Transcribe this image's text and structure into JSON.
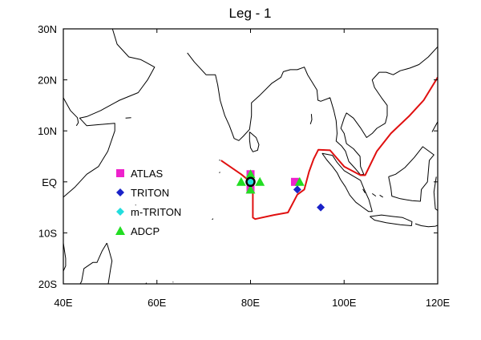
{
  "title": "Leg - 1",
  "x_ticks": [
    {
      "label": "40E",
      "lon": 40
    },
    {
      "label": "60E",
      "lon": 60
    },
    {
      "label": "80E",
      "lon": 80
    },
    {
      "label": "100E",
      "lon": 100
    },
    {
      "label": "120E",
      "lon": 120
    }
  ],
  "y_ticks": [
    {
      "label": "30N",
      "lat": 30
    },
    {
      "label": "20N",
      "lat": 20
    },
    {
      "label": "10N",
      "lat": 10
    },
    {
      "label": "EQ",
      "lat": 0
    },
    {
      "label": "10S",
      "lat": -10
    },
    {
      "label": "20S",
      "lat": -20
    }
  ],
  "extent": {
    "lon": [
      40,
      120
    ],
    "lat": [
      -20,
      30
    ]
  },
  "colors": {
    "route": "#e01010",
    "atlas": "#ee22cc",
    "triton": "#1a22c8",
    "m_triton": "#22dddd",
    "adcp": "#22dd22"
  },
  "legend": [
    {
      "key": "atlas",
      "label": "ATLAS",
      "marker": "square"
    },
    {
      "key": "triton",
      "label": "TRITON",
      "marker": "diamond"
    },
    {
      "key": "m_triton",
      "label": "m-TRITON",
      "marker": "diamond"
    },
    {
      "key": "adcp",
      "label": "ADCP",
      "marker": "triangle"
    }
  ],
  "route": [
    [
      73.7,
      4.2
    ],
    [
      78.0,
      1.5
    ],
    [
      80.0,
      0.0
    ],
    [
      80.5,
      -1.5
    ],
    [
      80.5,
      -7.0
    ],
    [
      81.0,
      -7.3
    ],
    [
      85.0,
      -6.5
    ],
    [
      88.0,
      -6.0
    ],
    [
      90.0,
      -2.5
    ],
    [
      91.5,
      -1.5
    ],
    [
      92.5,
      2.0
    ],
    [
      93.5,
      4.5
    ],
    [
      94.5,
      6.3
    ],
    [
      97.0,
      6.2
    ],
    [
      100.0,
      3.0
    ],
    [
      103.5,
      1.3
    ],
    [
      104.5,
      1.3
    ],
    [
      107.0,
      6.0
    ],
    [
      110.0,
      9.5
    ],
    [
      114.0,
      13.0
    ],
    [
      117.0,
      16.0
    ],
    [
      120.0,
      20.5
    ]
  ],
  "stations": [
    {
      "type": "atlas",
      "lon": 80,
      "lat": 1.5
    },
    {
      "type": "atlas",
      "lon": 80,
      "lat": -1.5
    },
    {
      "type": "atlas",
      "lon": 89.5,
      "lat": 0
    },
    {
      "type": "adcp",
      "lon": 78,
      "lat": 0
    },
    {
      "type": "adcp",
      "lon": 82,
      "lat": 0
    },
    {
      "type": "adcp",
      "lon": 80,
      "lat": 1.5
    },
    {
      "type": "adcp",
      "lon": 80,
      "lat": -1.5
    },
    {
      "type": "adcp",
      "lon": 90.5,
      "lat": 0
    },
    {
      "type": "m_triton",
      "lon": 80,
      "lat": 0
    },
    {
      "type": "triton",
      "lon": 90,
      "lat": -1.5
    },
    {
      "type": "triton",
      "lon": 95,
      "lat": -5
    }
  ],
  "mooring_circle": {
    "lon": 80,
    "lat": 0
  },
  "coastlines": [
    [
      [
        50.5,
        30
      ],
      [
        51.5,
        27
      ],
      [
        54,
        24.5
      ],
      [
        56.5,
        24
      ],
      [
        57.5,
        23.5
      ],
      [
        59.5,
        22.5
      ],
      [
        58,
        20
      ],
      [
        56,
        17.5
      ],
      [
        52,
        16
      ],
      [
        48,
        14
      ],
      [
        45,
        12.8
      ],
      [
        43.5,
        12.5
      ],
      [
        45,
        11
      ],
      [
        51,
        11.5
      ],
      [
        51,
        10
      ],
      [
        49.5,
        6
      ],
      [
        47.5,
        3
      ],
      [
        45,
        1.5
      ],
      [
        42.5,
        -1
      ],
      [
        40,
        -3
      ]
    ],
    [
      [
        40,
        16.5
      ],
      [
        41.5,
        14
      ],
      [
        43,
        12.6
      ],
      [
        43.2,
        11.6
      ],
      [
        42.8,
        11
      ]
    ],
    [
      [
        40,
        -12
      ],
      [
        40.5,
        -15
      ],
      [
        40.5,
        -16.5
      ],
      [
        40,
        -17.5
      ]
    ],
    [
      [
        66.5,
        25.3
      ],
      [
        68,
        23.5
      ],
      [
        69,
        22.5
      ],
      [
        70.5,
        21
      ],
      [
        72.5,
        21
      ],
      [
        73,
        19
      ],
      [
        73.5,
        16
      ],
      [
        74.5,
        13
      ],
      [
        75.5,
        11
      ],
      [
        76.5,
        8.5
      ],
      [
        77.5,
        8.1
      ],
      [
        78.5,
        9
      ],
      [
        79.8,
        10.3
      ],
      [
        80.2,
        13
      ],
      [
        80.2,
        15.5
      ],
      [
        82,
        17
      ],
      [
        84.5,
        19.3
      ],
      [
        86.5,
        20.5
      ],
      [
        87,
        21.6
      ],
      [
        88.5,
        22
      ],
      [
        90,
        22
      ],
      [
        91.5,
        22.5
      ],
      [
        92.2,
        21
      ],
      [
        93,
        19.8
      ],
      [
        94.2,
        18
      ],
      [
        94.4,
        16
      ],
      [
        95,
        15.8
      ],
      [
        97,
        16.5
      ],
      [
        97.8,
        14
      ],
      [
        98.3,
        12
      ],
      [
        98.5,
        9.5
      ],
      [
        98.3,
        8
      ],
      [
        99.5,
        7
      ],
      [
        100.3,
        6
      ],
      [
        101,
        4
      ],
      [
        102.5,
        2.5
      ],
      [
        103.5,
        1.4
      ],
      [
        104.2,
        1.5
      ],
      [
        103.5,
        3
      ],
      [
        103.4,
        5
      ],
      [
        102,
        6.5
      ],
      [
        100.5,
        7.5
      ],
      [
        100,
        9.5
      ],
      [
        99.3,
        10.5
      ],
      [
        100,
        12.5
      ],
      [
        100.5,
        13.5
      ],
      [
        102,
        12.5
      ],
      [
        103.5,
        10.6
      ],
      [
        104.8,
        8.7
      ],
      [
        106,
        9.5
      ],
      [
        107,
        10.5
      ],
      [
        108.8,
        11.5
      ],
      [
        109.2,
        13
      ],
      [
        109.2,
        15
      ],
      [
        108,
        16.5
      ],
      [
        106.5,
        18.5
      ],
      [
        106,
        20
      ],
      [
        107.5,
        21.5
      ],
      [
        109,
        21.5
      ],
      [
        110.5,
        21
      ],
      [
        112,
        21.8
      ],
      [
        114,
        22.3
      ],
      [
        116,
        23
      ],
      [
        118,
        24.5
      ],
      [
        120,
        26.5
      ]
    ],
    [
      [
        79.8,
        9.8
      ],
      [
        81.2,
        8.7
      ],
      [
        81.8,
        7.3
      ],
      [
        81.5,
        6.2
      ],
      [
        80.5,
        5.9
      ],
      [
        80,
        6.7
      ],
      [
        79.8,
        8.2
      ],
      [
        79.8,
        9.8
      ]
    ],
    [
      [
        93,
        13.3
      ],
      [
        93.1,
        12.2
      ],
      [
        92.8,
        11.3
      ]
    ],
    [
      [
        95.3,
        5.6
      ],
      [
        97.5,
        5.2
      ],
      [
        98.5,
        3.8
      ],
      [
        100,
        2.2
      ],
      [
        101.3,
        1.5
      ],
      [
        103.5,
        0.3
      ],
      [
        104.3,
        -1.5
      ],
      [
        105.3,
        -3.5
      ],
      [
        106,
        -5.8
      ],
      [
        105.2,
        -5.8
      ],
      [
        104,
        -5
      ],
      [
        102.5,
        -4
      ],
      [
        101.2,
        -2.6
      ],
      [
        100.3,
        -1
      ],
      [
        99.2,
        0.5
      ],
      [
        98.5,
        1.8
      ],
      [
        97.5,
        3
      ],
      [
        96.3,
        4.3
      ],
      [
        95.3,
        5.6
      ]
    ],
    [
      [
        105.5,
        -6.8
      ],
      [
        108,
        -6.5
      ],
      [
        110.5,
        -6.8
      ],
      [
        112.5,
        -7
      ],
      [
        114.5,
        -7.8
      ],
      [
        114.4,
        -8.6
      ],
      [
        112,
        -8.4
      ],
      [
        109,
        -8
      ],
      [
        106.5,
        -7.5
      ],
      [
        105.5,
        -6.8
      ]
    ],
    [
      [
        109.5,
        1
      ],
      [
        111,
        1.5
      ],
      [
        113,
        2.8
      ],
      [
        115,
        4.8
      ],
      [
        116.8,
        6.9
      ],
      [
        119.2,
        5.3
      ],
      [
        118.2,
        4.2
      ],
      [
        118,
        2
      ],
      [
        117.8,
        0
      ],
      [
        116.5,
        -1.5
      ],
      [
        116.3,
        -3.8
      ],
      [
        114.5,
        -3.7
      ],
      [
        112,
        -3.3
      ],
      [
        110.2,
        -2.8
      ],
      [
        110,
        -1.2
      ],
      [
        109.5,
        1
      ]
    ],
    [
      [
        119.7,
        1
      ],
      [
        119.2,
        -2
      ],
      [
        119.5,
        -5.3
      ],
      [
        120,
        -5.6
      ]
    ],
    [
      [
        115.2,
        -8.2
      ],
      [
        116.5,
        -8.6
      ],
      [
        118,
        -8.8
      ],
      [
        119.5,
        -8.7
      ],
      [
        120,
        -8.5
      ]
    ],
    [
      [
        118.8,
        9.8
      ],
      [
        119.4,
        10.8
      ],
      [
        120,
        11.8
      ]
    ],
    [
      [
        49.3,
        -12
      ],
      [
        48.3,
        -13.5
      ],
      [
        47.2,
        -15.8
      ],
      [
        46.3,
        -15.8
      ],
      [
        44.4,
        -17
      ],
      [
        43.9,
        -19.5
      ],
      [
        43.6,
        -20
      ]
    ],
    [
      [
        49.3,
        -12
      ],
      [
        49.8,
        -13.5
      ],
      [
        50.4,
        -15.5
      ],
      [
        50.1,
        -17
      ],
      [
        49.6,
        -20
      ]
    ],
    [
      [
        73.3,
        4.2
      ],
      [
        73.5,
        4.3
      ]
    ],
    [
      [
        73.3,
        1.8
      ],
      [
        73.5,
        1.9
      ]
    ],
    [
      [
        57.6,
        -20
      ],
      [
        57.8,
        -19.8
      ]
    ],
    [
      [
        63.4,
        -19.7
      ],
      [
        63.5,
        -19.6
      ]
    ],
    [
      [
        55.4,
        -4.5
      ],
      [
        55.5,
        -4.6
      ]
    ],
    [
      [
        53.3,
        12.5
      ],
      [
        54.5,
        12.6
      ]
    ],
    [
      [
        71.8,
        -7.4
      ],
      [
        72.0,
        -7.2
      ]
    ],
    [
      [
        104.0,
        -1.4
      ],
      [
        104.5,
        -2.2
      ]
    ],
    [
      [
        106.0,
        -2.3
      ],
      [
        106.8,
        -2.8
      ]
    ],
    [
      [
        107.6,
        -2.6
      ],
      [
        108.3,
        -3.0
      ]
    ],
    [
      [
        125,
        0
      ],
      [
        124,
        1
      ]
    ]
  ]
}
